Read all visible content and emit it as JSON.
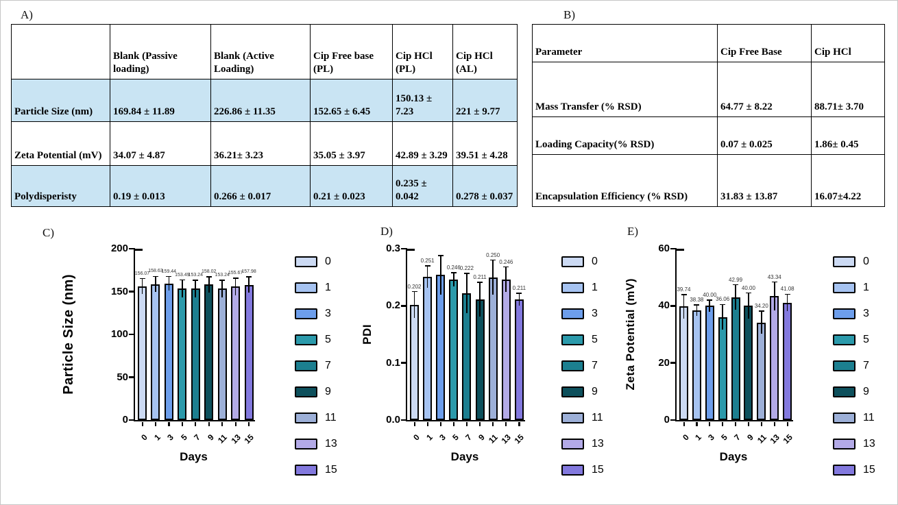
{
  "figure": {
    "panel_a_label": "A)",
    "panel_b_label": "B)"
  },
  "table_a": {
    "headers": [
      "",
      "Blank (Passive loading)",
      "Blank (Active Loading)",
      "Cip Free base (PL)",
      "Cip HCl (PL)",
      "Cip HCl (AL)"
    ],
    "rows": [
      {
        "label": "Particle Size (nm)",
        "values": [
          "169.84 ± 11.89",
          "226.86 ± 11.35",
          "152.65 ± 6.45",
          "150.13 ± 7.23",
          "221 ± 9.77"
        ],
        "highlight": true
      },
      {
        "label": "Zeta Potential (mV)",
        "values": [
          "34.07 ± 4.87",
          "36.21± 3.23",
          "35.05 ± 3.97",
          "42.89 ± 3.29",
          "39.51 ± 4.28"
        ],
        "highlight": false
      },
      {
        "label": "Polydisperisty",
        "values": [
          "0.19 ± 0.013",
          "0.266 ± 0.017",
          "0.21 ± 0.023",
          "0.235 ± 0.042",
          "0.278 ± 0.037"
        ],
        "highlight": true
      }
    ],
    "highlight_color": "#c9e4f3"
  },
  "table_b": {
    "headers": [
      "Parameter",
      "Cip Free Base",
      "Cip HCl"
    ],
    "rows": [
      {
        "label": "Mass Transfer (% RSD)",
        "values": [
          "64.77 ± 8.22",
          "88.71± 3.70"
        ]
      },
      {
        "label": "Loading Capacity(% RSD)",
        "values": [
          "0.07 ± 0.025",
          "1.86± 0.45"
        ]
      },
      {
        "label": "Encapsulation Efficiency (% RSD)",
        "values": [
          "31.83 ± 13.87",
          "16.07±4.22"
        ]
      }
    ]
  },
  "bar_colors": [
    "#ccdaf3",
    "#a6c3f1",
    "#6d9eeb",
    "#2b9aab",
    "#1c7f90",
    "#0d505c",
    "#9db0d8",
    "#b3aae7",
    "#8379de"
  ],
  "chart_data": [
    {
      "id": "chart-c",
      "panel": "C)",
      "type": "bar",
      "title": "",
      "ylabel": "Particle Size (nm)",
      "xlabel": "Days",
      "categories": [
        "0",
        "1",
        "3",
        "5",
        "7",
        "9",
        "11",
        "13",
        "15"
      ],
      "values": [
        156.07,
        158.63,
        159.44,
        153.49,
        153.24,
        158.02,
        153.24,
        155.67,
        157.98
      ],
      "bar_labels": [
        "156.07",
        "158.63",
        "159.44",
        "153.49",
        "153.24",
        "158.02",
        "153.24",
        "155.67",
        "157.98"
      ],
      "errors": [
        9,
        9,
        8,
        10,
        10,
        9,
        10,
        10,
        9
      ],
      "ylim": [
        0,
        200
      ],
      "yticks": [
        0,
        50,
        100,
        150,
        200
      ],
      "ytick_labels": [
        "0",
        "50",
        "100",
        "150",
        "200"
      ],
      "legend": [
        "0",
        "1",
        "3",
        "5",
        "7",
        "9",
        "11",
        "13",
        "15"
      ],
      "legend_position": "right",
      "grid": false
    },
    {
      "id": "chart-d",
      "panel": "D)",
      "type": "bar",
      "title": "",
      "ylabel": "PDI",
      "xlabel": "Days",
      "categories": [
        "0",
        "1",
        "3",
        "5",
        "7",
        "9",
        "11",
        "13",
        "15"
      ],
      "values": [
        0.202,
        0.251,
        0.254,
        0.246,
        0.222,
        0.211,
        0.25,
        0.246,
        0.211
      ],
      "bar_labels": [
        "0.202",
        "0.251",
        "",
        "0.246",
        "0.222",
        "0.211",
        "0.250",
        "0.246",
        "0.211"
      ],
      "errors": [
        0.023,
        0.019,
        0.034,
        0.012,
        0.035,
        0.03,
        0.03,
        0.022,
        0.011
      ],
      "ylim": [
        0,
        0.3
      ],
      "yticks": [
        0,
        0.1,
        0.2,
        0.3
      ],
      "ytick_labels": [
        "0.0",
        "0.1",
        "0.2",
        "0.3"
      ],
      "legend": [
        "0",
        "1",
        "3",
        "5",
        "7",
        "9",
        "11",
        "13",
        "15"
      ],
      "legend_position": "right",
      "grid": false
    },
    {
      "id": "chart-e",
      "panel": "E)",
      "type": "bar",
      "title": "",
      "ylabel": "Zeta Potential (mV)",
      "xlabel": "Days",
      "categories": [
        "0",
        "1",
        "3",
        "5",
        "7",
        "9",
        "11",
        "13",
        "15"
      ],
      "values": [
        39.74,
        38.38,
        40.0,
        36.06,
        42.99,
        40.0,
        34.2,
        43.34,
        41.08
      ],
      "bar_labels": [
        "39.74",
        "38.38",
        "40.00",
        "36.06",
        "42.99",
        "40.00",
        "34.20",
        "43.34",
        "41.08"
      ],
      "errors": [
        4.2,
        2.0,
        2.0,
        4.4,
        4.4,
        4.5,
        4.0,
        5.0,
        3.0
      ],
      "ylim": [
        0,
        60
      ],
      "yticks": [
        0,
        20,
        40,
        60
      ],
      "ytick_labels": [
        "0",
        "20",
        "40",
        "60"
      ],
      "legend": [
        "0",
        "1",
        "3",
        "5",
        "7",
        "9",
        "11",
        "13",
        "15"
      ],
      "legend_position": "right",
      "grid": false
    }
  ]
}
